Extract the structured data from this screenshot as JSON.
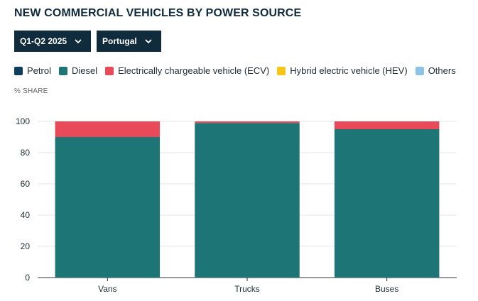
{
  "title": "NEW COMMERCIAL VEHICLES BY POWER SOURCE",
  "filters": [
    {
      "label": "Q1-Q2 2025"
    },
    {
      "label": "Portugal"
    }
  ],
  "legend": [
    {
      "label": "Petrol",
      "color": "#0f3d5c"
    },
    {
      "label": "Diesel",
      "color": "#1e7575"
    },
    {
      "label": "Electrically chargeable vehicle (ECV)",
      "color": "#e84a5a"
    },
    {
      "label": "Hybrid electric vehicle (HEV)",
      "color": "#f5c518"
    },
    {
      "label": "Others",
      "color": "#8ec3e8"
    }
  ],
  "unit_label": "% SHARE",
  "chart_data": {
    "type": "bar",
    "stacked": true,
    "categories": [
      "Vans",
      "Trucks",
      "Buses"
    ],
    "series": [
      {
        "name": "Petrol",
        "values": [
          0,
          0,
          0
        ]
      },
      {
        "name": "Diesel",
        "values": [
          90,
          99,
          95
        ]
      },
      {
        "name": "Electrically chargeable vehicle (ECV)",
        "values": [
          10,
          1,
          5
        ]
      },
      {
        "name": "Hybrid electric vehicle (HEV)",
        "values": [
          0,
          0,
          0
        ]
      },
      {
        "name": "Others",
        "values": [
          0,
          0,
          0
        ]
      }
    ],
    "ylim": [
      0,
      100
    ],
    "yticks": [
      0,
      20,
      40,
      60,
      80,
      100
    ],
    "ylabel": "% SHARE",
    "grid": true,
    "legend_position": "top"
  }
}
